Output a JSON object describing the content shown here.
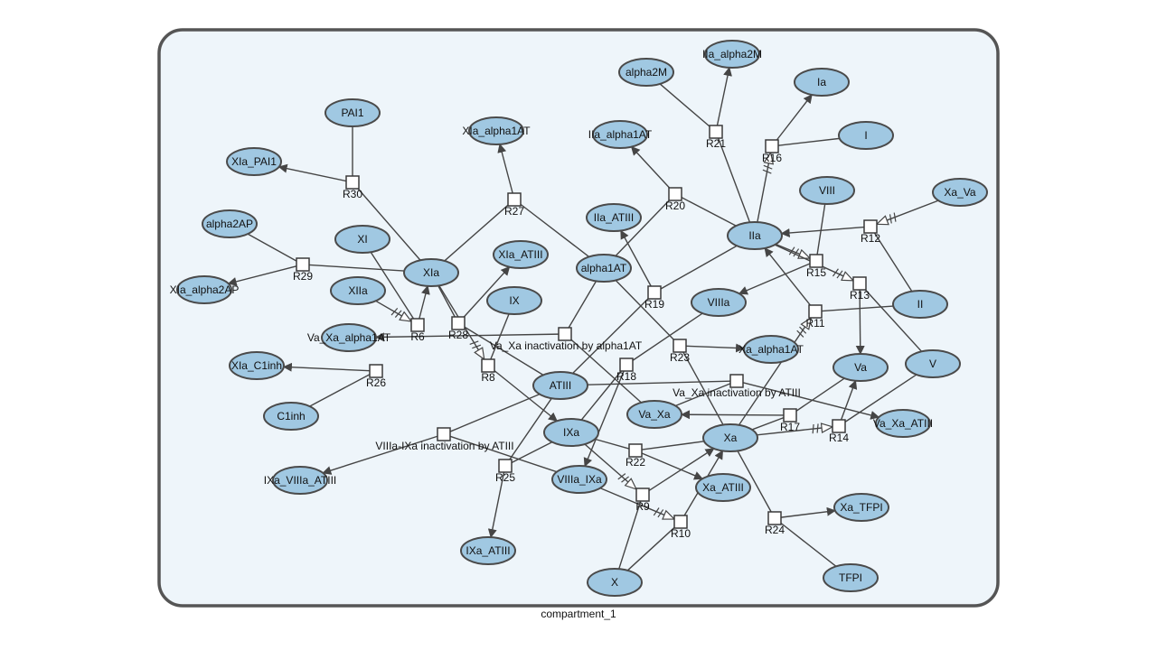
{
  "compartment": {
    "label": "compartment_1"
  },
  "colors": {
    "species_fill": "#a0c8e2",
    "compartment_fill": "#eef5fa",
    "compartment_stroke": "#555555"
  },
  "species": [
    {
      "id": "IIa_alpha2M",
      "label": "IIa_alpha2M"
    },
    {
      "id": "alpha2M",
      "label": "alpha2M"
    },
    {
      "id": "Ia",
      "label": "Ia"
    },
    {
      "id": "I",
      "label": "I"
    },
    {
      "id": "PAI1",
      "label": "PAI1"
    },
    {
      "id": "XIa_alpha1AT",
      "label": "XIa_alpha1AT"
    },
    {
      "id": "IIa_alpha1AT",
      "label": "IIa_alpha1AT"
    },
    {
      "id": "XIa_PAI1",
      "label": "XIa_PAI1"
    },
    {
      "id": "VIII",
      "label": "VIII"
    },
    {
      "id": "Xa_Va",
      "label": "Xa_Va"
    },
    {
      "id": "alpha2AP",
      "label": "alpha2AP"
    },
    {
      "id": "IIa_ATIII",
      "label": "IIa_ATIII"
    },
    {
      "id": "IIa",
      "label": "IIa"
    },
    {
      "id": "XI",
      "label": "XI"
    },
    {
      "id": "XIa_ATIII",
      "label": "XIa_ATIII"
    },
    {
      "id": "XIa",
      "label": "XIa"
    },
    {
      "id": "alpha1AT",
      "label": "alpha1AT"
    },
    {
      "id": "XIa_alpha2AP",
      "label": "XIa_alpha2AP"
    },
    {
      "id": "XIIa",
      "label": "XIIa"
    },
    {
      "id": "IX",
      "label": "IX"
    },
    {
      "id": "VIIIa",
      "label": "VIIIa"
    },
    {
      "id": "II",
      "label": "II"
    },
    {
      "id": "Va_Xa_alpha1AT",
      "label": "Va_Xa_alpha1AT"
    },
    {
      "id": "Xa_alpha1AT",
      "label": "Xa_alpha1AT"
    },
    {
      "id": "V",
      "label": "V"
    },
    {
      "id": "XIa_C1inh",
      "label": "XIa_C1inh"
    },
    {
      "id": "Va",
      "label": "Va"
    },
    {
      "id": "ATIII",
      "label": "ATIII"
    },
    {
      "id": "C1inh",
      "label": "C1inh"
    },
    {
      "id": "Va_Xa",
      "label": "Va_Xa"
    },
    {
      "id": "Va_Xa_ATIII",
      "label": "Va_Xa_ATIII"
    },
    {
      "id": "IXa",
      "label": "IXa"
    },
    {
      "id": "Xa",
      "label": "Xa"
    },
    {
      "id": "IXa_VIIIa_ATIII",
      "label": "IXa_VIIIa_ATIII"
    },
    {
      "id": "VIIIa_IXa",
      "label": "VIIIa_IXa"
    },
    {
      "id": "Xa_ATIII",
      "label": "Xa_ATIII"
    },
    {
      "id": "Xa_TFPI",
      "label": "Xa_TFPI"
    },
    {
      "id": "IXa_ATIII",
      "label": "IXa_ATIII"
    },
    {
      "id": "X",
      "label": "X"
    },
    {
      "id": "TFPI",
      "label": "TFPI"
    }
  ],
  "reactions": [
    {
      "id": "R21",
      "label": "R21"
    },
    {
      "id": "R16",
      "label": "R16"
    },
    {
      "id": "R30",
      "label": "R30"
    },
    {
      "id": "R27",
      "label": "R27"
    },
    {
      "id": "R20",
      "label": "R20"
    },
    {
      "id": "R12",
      "label": "R12"
    },
    {
      "id": "R29",
      "label": "R29"
    },
    {
      "id": "R15",
      "label": "R15"
    },
    {
      "id": "R13",
      "label": "R13"
    },
    {
      "id": "R19",
      "label": "R19"
    },
    {
      "id": "R6",
      "label": "R6"
    },
    {
      "id": "R28",
      "label": "R28"
    },
    {
      "id": "R11",
      "label": "R11"
    },
    {
      "id": "VaXa_alpha1AT",
      "label": "Va_Xa inactivation by alpha1AT"
    },
    {
      "id": "R23",
      "label": "R23"
    },
    {
      "id": "R8",
      "label": "R8"
    },
    {
      "id": "R18",
      "label": "R18"
    },
    {
      "id": "R26",
      "label": "R26"
    },
    {
      "id": "VaXa_ATIII",
      "label": "Va_Xa inactivation by ATIII"
    },
    {
      "id": "R17",
      "label": "R17"
    },
    {
      "id": "R14",
      "label": "R14"
    },
    {
      "id": "VIIIaIXa_ATIII",
      "label": "VIIIa-IXa inactivation by ATIII"
    },
    {
      "id": "R22",
      "label": "R22"
    },
    {
      "id": "R25",
      "label": "R25"
    },
    {
      "id": "R9",
      "label": "R9"
    },
    {
      "id": "R10",
      "label": "R10"
    },
    {
      "id": "R24",
      "label": "R24"
    }
  ],
  "edges": [
    {
      "from": "IIa",
      "to": "R21",
      "kind": "line"
    },
    {
      "from": "alpha2M",
      "to": "R21",
      "kind": "line"
    },
    {
      "from": "R21",
      "to": "IIa_alpha2M",
      "kind": "arrow"
    },
    {
      "from": "I",
      "to": "R16",
      "kind": "line"
    },
    {
      "from": "R16",
      "to": "Ia",
      "kind": "arrow"
    },
    {
      "from": "IIa",
      "to": "R16",
      "kind": "modifier"
    },
    {
      "from": "PAI1",
      "to": "R30",
      "kind": "line"
    },
    {
      "from": "XIa",
      "to": "R30",
      "kind": "line"
    },
    {
      "from": "R30",
      "to": "XIa_PAI1",
      "kind": "arrow"
    },
    {
      "from": "XIa",
      "to": "R27",
      "kind": "line"
    },
    {
      "from": "alpha1AT",
      "to": "R27",
      "kind": "line"
    },
    {
      "from": "R27",
      "to": "XIa_alpha1AT",
      "kind": "arrow"
    },
    {
      "from": "IIa",
      "to": "R20",
      "kind": "line"
    },
    {
      "from": "alpha1AT",
      "to": "R20",
      "kind": "line"
    },
    {
      "from": "R20",
      "to": "IIa_alpha1AT",
      "kind": "arrow"
    },
    {
      "from": "II",
      "to": "R12",
      "kind": "line"
    },
    {
      "from": "R12",
      "to": "IIa",
      "kind": "arrow"
    },
    {
      "from": "Xa_Va",
      "to": "R12",
      "kind": "modifier"
    },
    {
      "from": "alpha2AP",
      "to": "R29",
      "kind": "line"
    },
    {
      "from": "XIa",
      "to": "R29",
      "kind": "line"
    },
    {
      "from": "R29",
      "to": "XIa_alpha2AP",
      "kind": "arrow"
    },
    {
      "from": "VIII",
      "to": "R15",
      "kind": "line"
    },
    {
      "from": "R15",
      "to": "VIIIa",
      "kind": "arrow"
    },
    {
      "from": "IIa",
      "to": "R15",
      "kind": "modifier"
    },
    {
      "from": "V",
      "to": "R13",
      "kind": "line"
    },
    {
      "from": "R13",
      "to": "Va",
      "kind": "arrow"
    },
    {
      "from": "IIa",
      "to": "R13",
      "kind": "modifier"
    },
    {
      "from": "ATIII",
      "to": "R19",
      "kind": "line"
    },
    {
      "from": "IIa",
      "to": "R19",
      "kind": "line"
    },
    {
      "from": "R19",
      "to": "IIa_ATIII",
      "kind": "arrow"
    },
    {
      "from": "XI",
      "to": "R6",
      "kind": "line"
    },
    {
      "from": "R6",
      "to": "XIa",
      "kind": "arrow"
    },
    {
      "from": "XIIa",
      "to": "R6",
      "kind": "modifier"
    },
    {
      "from": "XIa",
      "to": "R28",
      "kind": "line"
    },
    {
      "from": "ATIII",
      "to": "R28",
      "kind": "line"
    },
    {
      "from": "R28",
      "to": "XIa_ATIII",
      "kind": "arrow"
    },
    {
      "from": "II",
      "to": "R11",
      "kind": "line"
    },
    {
      "from": "R11",
      "to": "IIa",
      "kind": "arrow"
    },
    {
      "from": "Xa",
      "to": "R11",
      "kind": "modifier"
    },
    {
      "from": "alpha1AT",
      "to": "VaXa_alpha1AT",
      "kind": "line"
    },
    {
      "from": "Va_Xa",
      "to": "VaXa_alpha1AT",
      "kind": "line"
    },
    {
      "from": "VaXa_alpha1AT",
      "to": "Va_Xa_alpha1AT",
      "kind": "arrow"
    },
    {
      "from": "alpha1AT",
      "to": "R23",
      "kind": "line"
    },
    {
      "from": "Xa",
      "to": "R23",
      "kind": "line"
    },
    {
      "from": "R23",
      "to": "Xa_alpha1AT",
      "kind": "arrow"
    },
    {
      "from": "IX",
      "to": "R8",
      "kind": "line"
    },
    {
      "from": "R8",
      "to": "IXa",
      "kind": "arrow"
    },
    {
      "from": "XIa",
      "to": "R8",
      "kind": "modifier"
    },
    {
      "from": "VIIIa",
      "to": "R18",
      "kind": "line"
    },
    {
      "from": "IXa",
      "to": "R18",
      "kind": "line"
    },
    {
      "from": "R18",
      "to": "VIIIa_IXa",
      "kind": "arrow"
    },
    {
      "from": "C1inh",
      "to": "R26",
      "kind": "line"
    },
    {
      "from": "R26",
      "to": "XIa_C1inh",
      "kind": "arrow"
    },
    {
      "from": "Va_Xa",
      "to": "VaXa_ATIII",
      "kind": "line"
    },
    {
      "from": "ATIII",
      "to": "VaXa_ATIII",
      "kind": "line"
    },
    {
      "from": "VaXa_ATIII",
      "to": "Va_Xa_ATIII",
      "kind": "arrow"
    },
    {
      "from": "Va",
      "to": "R17",
      "kind": "line"
    },
    {
      "from": "Xa",
      "to": "R17",
      "kind": "line"
    },
    {
      "from": "R17",
      "to": "Va_Xa",
      "kind": "arrow"
    },
    {
      "from": "V",
      "to": "R14",
      "kind": "line"
    },
    {
      "from": "R14",
      "to": "Va",
      "kind": "arrow"
    },
    {
      "from": "Xa",
      "to": "R14",
      "kind": "modifier"
    },
    {
      "from": "ATIII",
      "to": "VIIIaIXa_ATIII",
      "kind": "line"
    },
    {
      "from": "VIIIa_IXa",
      "to": "VIIIaIXa_ATIII",
      "kind": "line"
    },
    {
      "from": "VIIIaIXa_ATIII",
      "to": "IXa_VIIIa_ATIII",
      "kind": "arrow"
    },
    {
      "from": "IXa",
      "to": "R22",
      "kind": "line"
    },
    {
      "from": "Xa",
      "to": "R22",
      "kind": "line"
    },
    {
      "from": "R22",
      "to": "Xa_ATIII",
      "kind": "arrow"
    },
    {
      "from": "IXa",
      "to": "R25",
      "kind": "line"
    },
    {
      "from": "ATIII",
      "to": "R25",
      "kind": "line"
    },
    {
      "from": "R25",
      "to": "IXa_ATIII",
      "kind": "arrow"
    },
    {
      "from": "X",
      "to": "R9",
      "kind": "line"
    },
    {
      "from": "R9",
      "to": "Xa",
      "kind": "arrow"
    },
    {
      "from": "IXa",
      "to": "R9",
      "kind": "modifier"
    },
    {
      "from": "X",
      "to": "R10",
      "kind": "line"
    },
    {
      "from": "R10",
      "to": "Xa",
      "kind": "arrow"
    },
    {
      "from": "VIIIa_IXa",
      "to": "R10",
      "kind": "modifier"
    },
    {
      "from": "Xa",
      "to": "R24",
      "kind": "line"
    },
    {
      "from": "TFPI",
      "to": "R24",
      "kind": "line"
    },
    {
      "from": "R24",
      "to": "Xa_TFPI",
      "kind": "arrow"
    }
  ]
}
